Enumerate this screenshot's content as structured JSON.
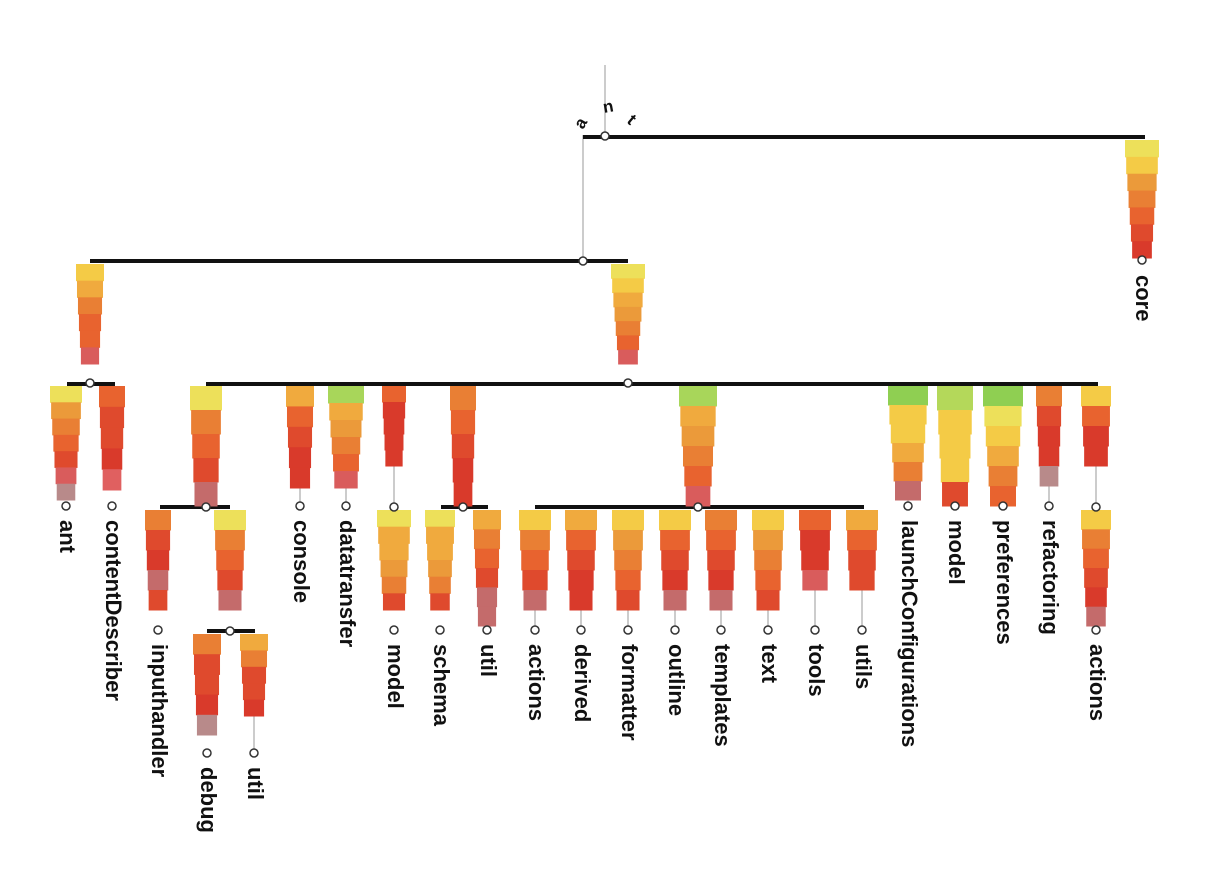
{
  "root": {
    "letters": [
      "a",
      "n",
      "t"
    ],
    "children": [
      {
        "id": "ui",
        "bar": "g4",
        "children": [
          {
            "id": "ui-left",
            "bar": "g6",
            "children": [
              {
                "id": "ant",
                "label": "ant",
                "bar": "g5"
              },
              {
                "id": "contentdescriber",
                "label": "contentDescriber",
                "bar": "g7"
              }
            ]
          },
          {
            "id": "editor",
            "bar": "g1",
            "children": [
              {
                "id": "editor-a",
                "bar": "g3",
                "children": [
                  {
                    "id": "inputhandler",
                    "label": "inputhandler",
                    "bar": "g8"
                  },
                  {
                    "id": "editor-a-b",
                    "bar": "g3",
                    "children": [
                      {
                        "id": "debug",
                        "label": "debug",
                        "bar": "g9"
                      },
                      {
                        "id": "util-1",
                        "label": "util",
                        "bar": "g10"
                      }
                    ]
                  }
                ]
              },
              {
                "id": "console",
                "label": "console",
                "bar": "g11"
              },
              {
                "id": "datatransfer",
                "label": "datatransfer",
                "bar": "g12"
              },
              {
                "id": "editor-c",
                "bar": "g13",
                "children": [
                  {
                    "id": "model-1",
                    "label": "model",
                    "bar": "g14"
                  }
                ]
              },
              {
                "id": "editor-d",
                "bar": "g15",
                "children": [
                  {
                    "id": "schema",
                    "label": "schema",
                    "bar": "g14"
                  },
                  {
                    "id": "util-2",
                    "label": "util",
                    "bar": "g16"
                  }
                ]
              },
              {
                "id": "editor-e",
                "bar": "g12",
                "children": [
                  {
                    "id": "actions-1",
                    "label": "actions",
                    "bar": "g17"
                  },
                  {
                    "id": "derived",
                    "label": "derived",
                    "bar": "g18"
                  },
                  {
                    "id": "formatter",
                    "label": "formatter",
                    "bar": "g19"
                  },
                  {
                    "id": "outline",
                    "label": "outline",
                    "bar": "g20"
                  },
                  {
                    "id": "templates",
                    "label": "templates",
                    "bar": "g21"
                  },
                  {
                    "id": "text",
                    "label": "text",
                    "bar": "g19"
                  },
                  {
                    "id": "tools",
                    "label": "tools",
                    "bar": "g22"
                  },
                  {
                    "id": "utils",
                    "label": "utils",
                    "bar": "g23"
                  }
                ]
              },
              {
                "id": "launchconfigurations",
                "label": "launchConfigurations",
                "bar": "g24"
              },
              {
                "id": "model-2",
                "label": "model",
                "bar": "g25"
              },
              {
                "id": "preferences",
                "label": "preferences",
                "bar": "g26"
              },
              {
                "id": "refactoring",
                "label": "refactoring",
                "bar": "g27"
              },
              {
                "id": "editor-f",
                "bar": "g28",
                "children": [
                  {
                    "id": "actions-2",
                    "label": "actions",
                    "bar": "g29"
                  }
                ]
              }
            ]
          }
        ]
      },
      {
        "id": "core",
        "label": "core",
        "bar": "g30"
      }
    ]
  },
  "gradients": {
    "g1": [
      "#ede05a",
      "#f4cb46",
      "#f0aa3e",
      "#eb9a3a",
      "#e97f34",
      "#e8632f",
      "#d95c5c"
    ],
    "g3": [
      "#ede05a",
      "#e97f34",
      "#e8632f",
      "#df4a2d",
      "#c46b6b"
    ],
    "g4": [
      "#f4cb46",
      "#f0aa3e",
      "#e97f34",
      "#e8632f",
      "#e8632f",
      "#d95c5c"
    ],
    "g5": [
      "#ede05a",
      "#eb9a3a",
      "#e97f34",
      "#e8632f",
      "#df4a2d",
      "#d95c5c",
      "#b88a8a"
    ],
    "g6": [
      "#111111"
    ],
    "g7": [
      "#e8632f",
      "#df4a2d",
      "#df4a2d",
      "#d93a2b",
      "#e06060"
    ],
    "g8": [
      "#e97f34",
      "#df4a2d",
      "#d93a2b",
      "#c46b6b",
      "#df4a2d"
    ],
    "g9": [
      "#e97f34",
      "#df4a2d",
      "#df4a2d",
      "#d93a2b",
      "#b88a8a"
    ],
    "g10": [
      "#f0aa3e",
      "#e97f34",
      "#df4a2d",
      "#df4a2d",
      "#d93a2b"
    ],
    "g11": [
      "#f0aa3e",
      "#e8632f",
      "#df4a2d",
      "#d93a2b",
      "#d93a2b"
    ],
    "g12": [
      "#a8d65a",
      "#f0aa3e",
      "#eb9a3a",
      "#e97f34",
      "#e8632f",
      "#d95c5c"
    ],
    "g13": [
      "#e8632f",
      "#d93a2b",
      "#d93a2b",
      "#d93a2b",
      "#d93a2b"
    ],
    "g14": [
      "#ede05a",
      "#f0aa3e",
      "#f0aa3e",
      "#eb9a3a",
      "#e97f34",
      "#df4a2d"
    ],
    "g15": [
      "#e97f34",
      "#e8632f",
      "#df4a2d",
      "#d93a2b",
      "#d93a2b"
    ],
    "g16": [
      "#f0aa3e",
      "#e97f34",
      "#e8632f",
      "#df4a2d",
      "#c46b6b",
      "#c46b6b"
    ],
    "g17": [
      "#f4cb46",
      "#e97f34",
      "#e8632f",
      "#df4a2d",
      "#c46b6b"
    ],
    "g18": [
      "#f0aa3e",
      "#e8632f",
      "#df4a2d",
      "#d93a2b",
      "#d93a2b"
    ],
    "g19": [
      "#f4cb46",
      "#eb9a3a",
      "#e97f34",
      "#e8632f",
      "#df4a2d"
    ],
    "g20": [
      "#f4cb46",
      "#e8632f",
      "#df4a2d",
      "#d93a2b",
      "#c46b6b"
    ],
    "g21": [
      "#e97f34",
      "#e8632f",
      "#df4a2d",
      "#d93a2b",
      "#c46b6b"
    ],
    "g22": [
      "#e8632f",
      "#d93a2b",
      "#d93a2b",
      "#d95c5c"
    ],
    "g23": [
      "#f0aa3e",
      "#e8632f",
      "#df4a2d",
      "#df4a2d"
    ],
    "g24": [
      "#8fcf52",
      "#f4cb46",
      "#f4cb46",
      "#f0aa3e",
      "#e97f34",
      "#c46b6b"
    ],
    "g25": [
      "#b4d85a",
      "#f4cb46",
      "#f4cb46",
      "#f4cb46",
      "#df4a2d"
    ],
    "g26": [
      "#8fcf52",
      "#ede05a",
      "#f4cb46",
      "#f0aa3e",
      "#e97f34",
      "#e8632f"
    ],
    "g27": [
      "#e97f34",
      "#df4a2d",
      "#d93a2b",
      "#d93a2b",
      "#b88a8a"
    ],
    "g28": [
      "#f4cb46",
      "#e8632f",
      "#d93a2b",
      "#d93a2b"
    ],
    "g29": [
      "#f4cb46",
      "#e97f34",
      "#e8632f",
      "#df4a2d",
      "#d93a2b",
      "#c46b6b"
    ],
    "g30": [
      "#ede05a",
      "#f4cb46",
      "#eb9a3a",
      "#e97f34",
      "#e8632f",
      "#df4a2d",
      "#d93a2b"
    ]
  }
}
